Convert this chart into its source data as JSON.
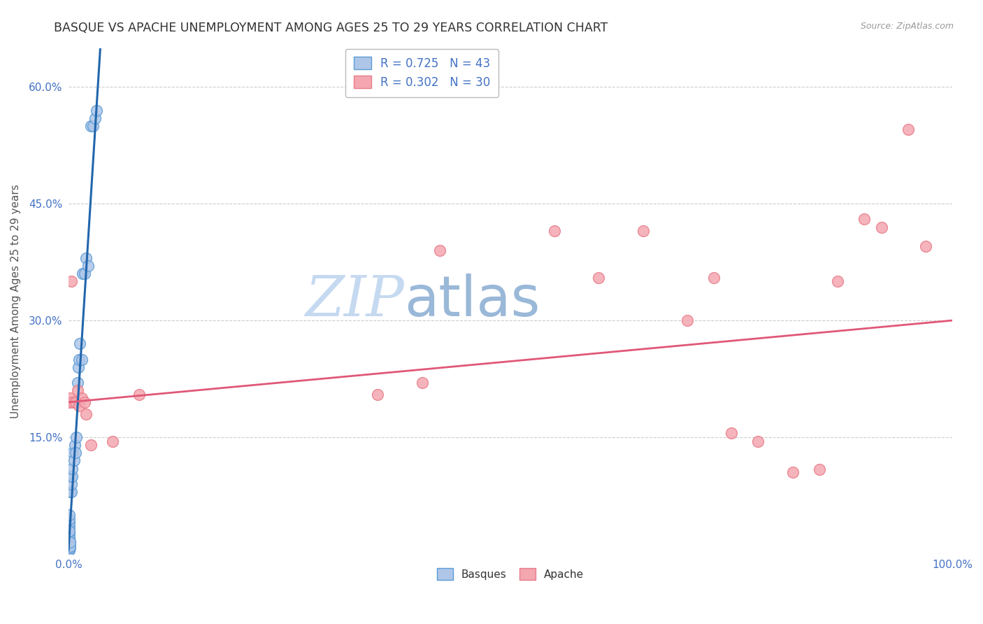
{
  "title": "BASQUE VS APACHE UNEMPLOYMENT AMONG AGES 25 TO 29 YEARS CORRELATION CHART",
  "source": "Source: ZipAtlas.com",
  "ylabel": "Unemployment Among Ages 25 to 29 years",
  "xlim": [
    0.0,
    1.0
  ],
  "ylim": [
    0.0,
    0.65
  ],
  "xticks": [
    0.0,
    0.2,
    0.4,
    0.6,
    0.8,
    1.0
  ],
  "xtick_labels": [
    "0.0%",
    "",
    "",
    "",
    "",
    "100.0%"
  ],
  "yticks": [
    0.0,
    0.15,
    0.3,
    0.45,
    0.6
  ],
  "ytick_labels": [
    "",
    "15.0%",
    "30.0%",
    "45.0%",
    "60.0%"
  ],
  "watermark_zip": "ZIP",
  "watermark_atlas": "atlas",
  "blue_face_color": "#aec6e8",
  "blue_edge_color": "#5b9bd5",
  "pink_face_color": "#f4a7b0",
  "pink_edge_color": "#e87c8a",
  "blue_line_color": "#2166ac",
  "pink_line_color": "#e05878",
  "title_color": "#333333",
  "axis_label_color": "#555555",
  "tick_color": "#4472c4",
  "basques_x": [
    0.0005,
    0.0005,
    0.0005,
    0.0005,
    0.0005,
    0.0005,
    0.0005,
    0.0005,
    0.0005,
    0.0005,
    0.001,
    0.001,
    0.001,
    0.001,
    0.001,
    0.0015,
    0.0015,
    0.002,
    0.002,
    0.002,
    0.0025,
    0.003,
    0.003,
    0.004,
    0.004,
    0.005,
    0.006,
    0.007,
    0.008,
    0.009,
    0.01,
    0.011,
    0.012,
    0.013,
    0.015,
    0.016,
    0.018,
    0.02,
    0.022,
    0.025,
    0.028,
    0.03,
    0.032
  ],
  "basques_y": [
    0.005,
    0.01,
    0.015,
    0.02,
    0.025,
    0.03,
    0.035,
    0.04,
    0.045,
    0.05,
    0.005,
    0.01,
    0.015,
    0.02,
    0.03,
    0.008,
    0.015,
    0.01,
    0.015,
    0.08,
    0.1,
    0.08,
    0.09,
    0.1,
    0.11,
    0.13,
    0.12,
    0.14,
    0.13,
    0.15,
    0.22,
    0.24,
    0.25,
    0.27,
    0.25,
    0.36,
    0.36,
    0.38,
    0.37,
    0.55,
    0.55,
    0.56,
    0.57
  ],
  "apache_x": [
    0.001,
    0.002,
    0.003,
    0.005,
    0.008,
    0.01,
    0.012,
    0.015,
    0.018,
    0.02,
    0.025,
    0.05,
    0.08,
    0.35,
    0.4,
    0.42,
    0.55,
    0.6,
    0.65,
    0.7,
    0.73,
    0.75,
    0.78,
    0.82,
    0.85,
    0.87,
    0.9,
    0.92,
    0.95,
    0.97
  ],
  "apache_y": [
    0.195,
    0.2,
    0.35,
    0.195,
    0.195,
    0.21,
    0.19,
    0.2,
    0.195,
    0.18,
    0.14,
    0.145,
    0.205,
    0.205,
    0.22,
    0.39,
    0.415,
    0.355,
    0.415,
    0.3,
    0.355,
    0.155,
    0.145,
    0.105,
    0.109,
    0.35,
    0.43,
    0.42,
    0.545,
    0.395
  ],
  "blue_line_x0": 0.0,
  "blue_line_y0": 0.005,
  "blue_line_x1": 0.036,
  "blue_line_y1": 0.65,
  "pink_line_x0": 0.0,
  "pink_line_y0": 0.195,
  "pink_line_x1": 1.0,
  "pink_line_y1": 0.3
}
